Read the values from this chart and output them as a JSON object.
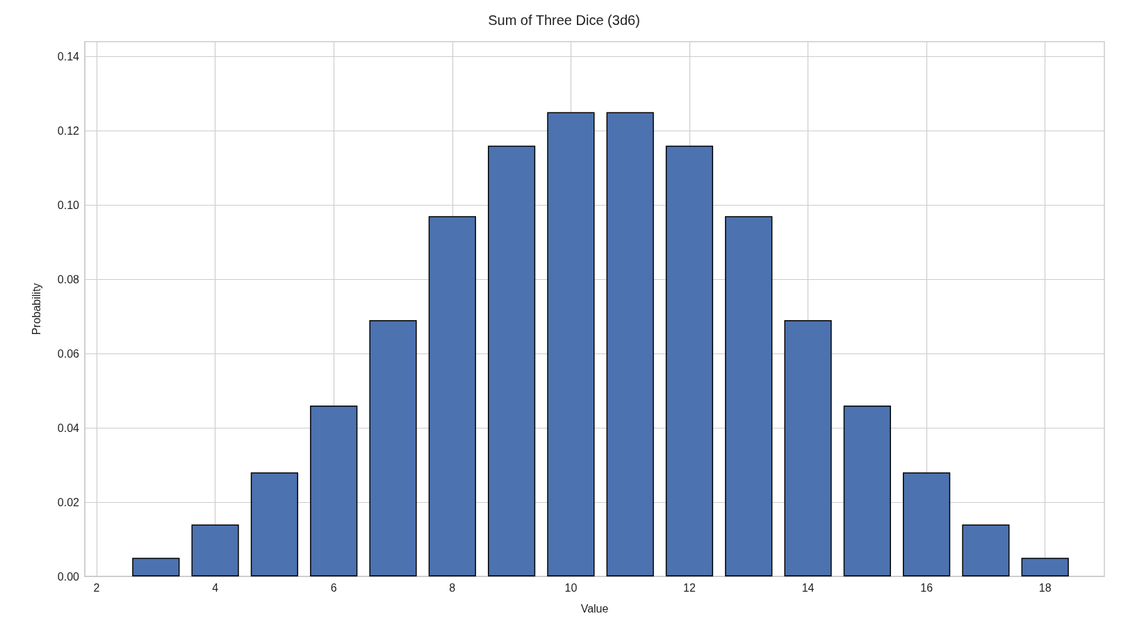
{
  "chart_data": {
    "type": "bar",
    "title": "Sum of Three Dice (3d6)",
    "xlabel": "Value",
    "ylabel": "Probability",
    "x": [
      3,
      4,
      5,
      6,
      7,
      8,
      9,
      10,
      11,
      12,
      13,
      14,
      15,
      16,
      17,
      18
    ],
    "values": [
      0.005,
      0.014,
      0.028,
      0.046,
      0.069,
      0.097,
      0.116,
      0.125,
      0.125,
      0.116,
      0.097,
      0.069,
      0.046,
      0.028,
      0.014,
      0.005
    ],
    "color": "#4c72b0",
    "xlim": [
      1.8,
      19
    ],
    "xticks": [
      2,
      4,
      6,
      8,
      10,
      12,
      14,
      16,
      18
    ],
    "ylim": [
      0,
      0.144
    ],
    "yticks": [
      {
        "value": 0,
        "label": "0.00"
      },
      {
        "value": 0.02,
        "label": "0.02"
      },
      {
        "value": 0.04,
        "label": "0.04"
      },
      {
        "value": 0.06,
        "label": "0.06"
      },
      {
        "value": 0.08,
        "label": "0.08"
      },
      {
        "value": 0.1,
        "label": "0.10"
      },
      {
        "value": 0.12,
        "label": "0.12"
      },
      {
        "value": 0.14,
        "label": "0.14"
      }
    ],
    "grid": true
  }
}
